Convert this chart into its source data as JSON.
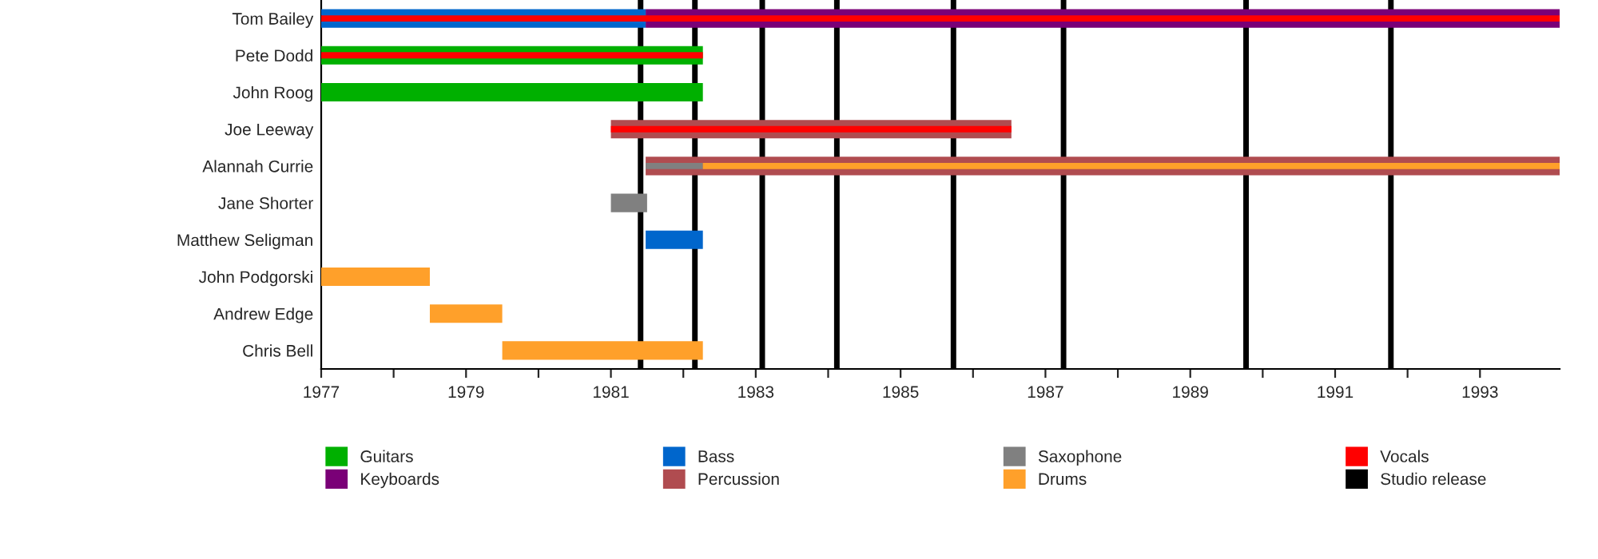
{
  "chart_data": {
    "type": "bar",
    "orientation": "horizontal",
    "categories": [
      "Tom Bailey",
      "Pete Dodd",
      "John Roog",
      "Joe Leeway",
      "Alannah Currie",
      "Jane Shorter",
      "Matthew Seligman",
      "John Podgorski",
      "Andrew Edge",
      "Chris Bell"
    ],
    "series": [
      {
        "name": "Guitars",
        "color": "#00b000",
        "base": [
          null,
          1977,
          1977,
          null,
          null,
          null,
          null,
          null,
          null,
          null
        ],
        "values": [
          null,
          5.27,
          5.27,
          null,
          null,
          null,
          null,
          null,
          null,
          null
        ]
      },
      {
        "name": "Keyboards",
        "color": "#7a0077",
        "base": [
          1981.48,
          null,
          null,
          null,
          null,
          null,
          null,
          null,
          null,
          null
        ],
        "values": [
          12.62,
          null,
          null,
          null,
          null,
          null,
          null,
          null,
          null,
          null
        ]
      },
      {
        "name": "Bass",
        "color": "#0066cc",
        "base": [
          1977,
          null,
          null,
          null,
          null,
          null,
          1981.48,
          null,
          null,
          null
        ],
        "values": [
          4.48,
          null,
          null,
          null,
          null,
          null,
          0.79,
          null,
          null,
          null
        ]
      },
      {
        "name": "Percussion",
        "color": "#b04c50",
        "base": [
          null,
          null,
          null,
          1981,
          1981.48,
          null,
          null,
          null,
          null,
          null
        ],
        "values": [
          null,
          null,
          null,
          5.53,
          12.62,
          null,
          null,
          null,
          null,
          null
        ]
      },
      {
        "name": "Saxophone",
        "color": "#808080",
        "base": [
          null,
          null,
          null,
          null,
          1981.48,
          1981,
          null,
          null,
          null,
          null
        ],
        "values": [
          null,
          null,
          null,
          null,
          0.79,
          0.5,
          null,
          null,
          null,
          null
        ]
      },
      {
        "name": "Drums",
        "color": "#ffa02a",
        "base": [
          null,
          null,
          null,
          null,
          1982.27,
          null,
          null,
          1977,
          1978.5,
          1979.5
        ],
        "values": [
          null,
          null,
          null,
          null,
          11.83,
          null,
          null,
          1.5,
          1.0,
          2.77
        ]
      },
      {
        "name": "Vocals",
        "color": "#ff0000",
        "base": [
          1977,
          1977,
          null,
          1981,
          null,
          null,
          null,
          null,
          null,
          null
        ],
        "values": [
          17.1,
          5.27,
          null,
          5.53,
          null,
          null,
          null,
          null,
          null,
          null
        ]
      }
    ],
    "xlim": [
      1977,
      1994.1
    ],
    "xticks": [
      1977,
      {
        "value": 1978,
        "label": null
      },
      1979,
      {
        "value": 1980,
        "label": null
      },
      1981,
      {
        "value": 1982,
        "label": null
      },
      1983,
      {
        "value": 1984,
        "label": null
      },
      1985,
      {
        "value": 1986,
        "label": null
      },
      1987,
      {
        "value": 1988,
        "label": null
      },
      1989,
      {
        "value": 1990,
        "label": null
      },
      1991,
      {
        "value": 1992,
        "label": null
      },
      1993
    ],
    "ref_lines": [
      {
        "axis": "x",
        "value": 1981.41,
        "color": "#000000",
        "label": "Studio release"
      },
      {
        "axis": "x",
        "value": 1982.16,
        "color": "#000000"
      },
      {
        "axis": "x",
        "value": 1983.09,
        "color": "#000000"
      },
      {
        "axis": "x",
        "value": 1984.12,
        "color": "#000000"
      },
      {
        "axis": "x",
        "value": 1985.73,
        "color": "#000000"
      },
      {
        "axis": "x",
        "value": 1987.25,
        "color": "#000000"
      },
      {
        "axis": "x",
        "value": 1989.77,
        "color": "#000000"
      },
      {
        "axis": "x",
        "value": 1991.77,
        "color": "#000000"
      }
    ],
    "legend": "bottom",
    "grid": false
  }
}
